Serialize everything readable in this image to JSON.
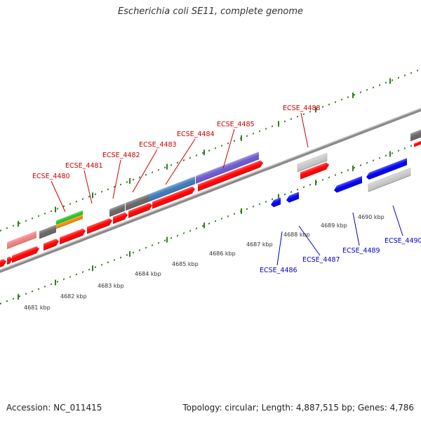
{
  "title": "Escherichia coli SE11, complete genome",
  "footer": {
    "accession": "Accession: NC_011415",
    "summary": "Topology: circular; Length: 4,887,515 bp; Genes: 4,786"
  },
  "colors": {
    "backbone": "#8a8a8a",
    "tick": "#2e7d1e",
    "label_forward": "#cc0000",
    "label_reverse": "#0000cc"
  },
  "scale_ticks": [
    "4681 kbp",
    "4682 kbp",
    "4683 kbp",
    "4684 kbp",
    "4685 kbp",
    "4686 kbp",
    "4687 kbp",
    "4688 kbp",
    "4689 kbp",
    "4690 kbp"
  ],
  "gene_labels_forward": [
    "ECSE_4480",
    "ECSE_4481",
    "ECSE_4482",
    "ECSE_4483",
    "ECSE_4484",
    "ECSE_4485",
    "ECSE_4488"
  ],
  "gene_labels_reverse": [
    "ECSE_4486",
    "ECSE_4487",
    "ECSE_4489",
    "ECSE_4490"
  ]
}
